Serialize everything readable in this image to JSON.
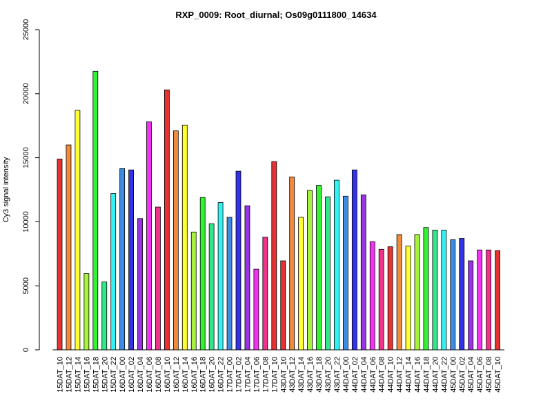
{
  "chart_data": {
    "type": "bar",
    "title": "RXP_0009: Root_diurnal; Os09g0111800_14634",
    "xlabel": "",
    "ylabel": "Cy3 signal intensity",
    "ylim": [
      0,
      25000
    ],
    "yticks": [
      0,
      5000,
      10000,
      15000,
      20000,
      25000
    ],
    "grid": false,
    "categories": [
      "15DAT_10",
      "15DAT_12",
      "15DAT_14",
      "15DAT_16",
      "15DAT_18",
      "15DAT_20",
      "15DAT_22",
      "16DAT_00",
      "16DAT_02",
      "16DAT_04",
      "16DAT_06",
      "16DAT_08",
      "16DAT_10",
      "16DAT_12",
      "16DAT_14",
      "16DAT_16",
      "16DAT_18",
      "16DAT_20",
      "16DAT_22",
      "17DAT_00",
      "17DAT_02",
      "17DAT_04",
      "17DAT_06",
      "17DAT_08",
      "17DAT_10",
      "43DAT_10",
      "43DAT_12",
      "43DAT_14",
      "43DAT_16",
      "43DAT_18",
      "43DAT_20",
      "43DAT_22",
      "44DAT_00",
      "44DAT_02",
      "44DAT_04",
      "44DAT_06",
      "44DAT_08",
      "44DAT_10",
      "44DAT_12",
      "44DAT_14",
      "44DAT_16",
      "44DAT_18",
      "44DAT_20",
      "44DAT_22",
      "45DAT_00",
      "45DAT_02",
      "45DAT_04",
      "45DAT_06",
      "45DAT_08",
      "45DAT_10"
    ],
    "values": [
      14900,
      16000,
      18700,
      5950,
      21750,
      5300,
      12200,
      14150,
      14050,
      10250,
      17800,
      11150,
      20300,
      17100,
      17550,
      9200,
      11900,
      9850,
      11500,
      10350,
      13950,
      11250,
      6300,
      8800,
      14700,
      6950,
      13500,
      10350,
      12450,
      12850,
      11950,
      13250,
      12000,
      14050,
      12100,
      8450,
      7850,
      8050,
      9000,
      8100,
      9000,
      9550,
      9350,
      9350,
      8600,
      8700,
      6950,
      7800,
      7800,
      7750
    ],
    "colors": [
      "#e83232",
      "#f08a3c",
      "#ffff33",
      "#a6f23c",
      "#33f233",
      "#33e68c",
      "#33f2f2",
      "#3c8ce6",
      "#3232e6",
      "#9933e6",
      "#f233f2",
      "#f2338c",
      "#e83232",
      "#f08a3c",
      "#ffff33",
      "#a6f23c",
      "#33f233",
      "#33e68c",
      "#33f2f2",
      "#3c8ce6",
      "#3232e6",
      "#9933e6",
      "#f233f2",
      "#f2338c",
      "#e83232",
      "#e83232",
      "#f08a3c",
      "#ffff33",
      "#a6f23c",
      "#33f233",
      "#33e68c",
      "#33f2f2",
      "#3c8ce6",
      "#3232e6",
      "#9933e6",
      "#f233f2",
      "#f2338c",
      "#e83232",
      "#f08a3c",
      "#ffff33",
      "#a6f23c",
      "#33f233",
      "#33e68c",
      "#33f2f2",
      "#3c8ce6",
      "#3232e6",
      "#9933e6",
      "#f233f2",
      "#f2338c",
      "#e83232"
    ]
  }
}
